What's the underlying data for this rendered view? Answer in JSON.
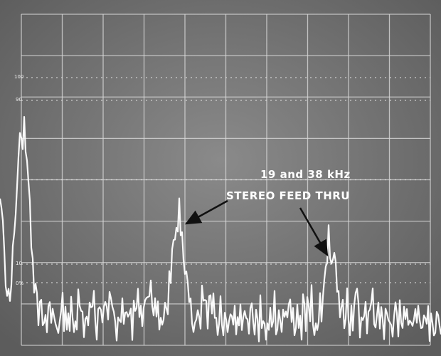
{
  "screen": {
    "graticule_labels": [
      "100",
      "90",
      "10",
      "0%"
    ],
    "annotation": {
      "line1": "19 and 38 kHz",
      "line2": "STEREO FEED THRU"
    }
  }
}
